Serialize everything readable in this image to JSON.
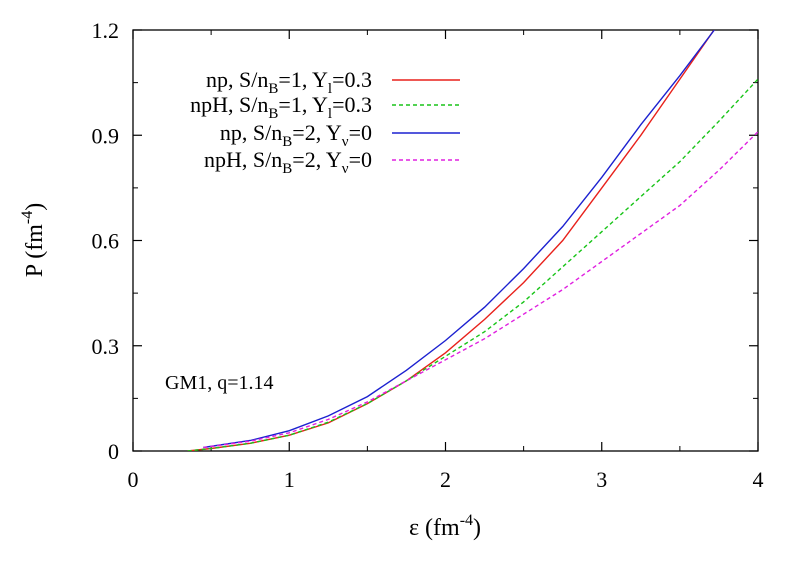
{
  "chart_data": {
    "type": "line",
    "xlabel": "ε (fm⁻⁴)",
    "ylabel": "P (fm⁻⁴)",
    "xlim": [
      0,
      4
    ],
    "ylim": [
      0,
      1.2
    ],
    "xticks": [
      "0",
      "1",
      "2",
      "3",
      "4"
    ],
    "yticks": [
      "0",
      "0.3",
      "0.6",
      "0.9",
      "1.2"
    ],
    "annotation": "GM1, q=1.14",
    "legend_position": "top-right",
    "series": [
      {
        "name": "np, S/nB=1, Yl=0.3",
        "color": "#e8211b",
        "dash": "solid",
        "x": [
          0.35,
          0.5,
          0.75,
          1.0,
          1.25,
          1.5,
          1.75,
          2.0,
          2.25,
          2.5,
          2.75,
          3.0,
          3.25,
          3.5,
          3.75
        ],
        "y": [
          0.0,
          0.007,
          0.022,
          0.045,
          0.08,
          0.135,
          0.2,
          0.28,
          0.375,
          0.48,
          0.6,
          0.75,
          0.9,
          1.06,
          1.22
        ]
      },
      {
        "name": "npH, S/nB=1, Yl=0.3",
        "color": "#18c418",
        "dash": "dashed",
        "x": [
          0.35,
          0.5,
          0.75,
          1.0,
          1.25,
          1.5,
          1.75,
          2.0,
          2.25,
          2.5,
          2.75,
          3.0,
          3.25,
          3.5,
          3.75,
          4.0
        ],
        "y": [
          0.0,
          0.007,
          0.022,
          0.045,
          0.082,
          0.135,
          0.2,
          0.27,
          0.34,
          0.425,
          0.525,
          0.625,
          0.725,
          0.825,
          0.94,
          1.06
        ]
      },
      {
        "name": "np, S/nB=2, Yv=0",
        "color": "#1c21d0",
        "dash": "solid",
        "x": [
          0.45,
          0.75,
          1.0,
          1.25,
          1.5,
          1.75,
          2.0,
          2.25,
          2.5,
          2.75,
          3.0,
          3.25,
          3.5,
          3.72
        ],
        "y": [
          0.01,
          0.03,
          0.058,
          0.1,
          0.155,
          0.23,
          0.315,
          0.41,
          0.52,
          0.64,
          0.78,
          0.93,
          1.07,
          1.2
        ]
      },
      {
        "name": "npH, S/nB=2, Yv=0",
        "color": "#e020e0",
        "dash": "dashed",
        "x": [
          0.45,
          0.75,
          1.0,
          1.25,
          1.5,
          1.75,
          2.0,
          2.25,
          2.5,
          2.75,
          3.0,
          3.25,
          3.5,
          3.75,
          4.0
        ],
        "y": [
          0.01,
          0.028,
          0.052,
          0.09,
          0.14,
          0.2,
          0.26,
          0.32,
          0.39,
          0.46,
          0.54,
          0.62,
          0.7,
          0.8,
          0.91
        ]
      }
    ]
  }
}
